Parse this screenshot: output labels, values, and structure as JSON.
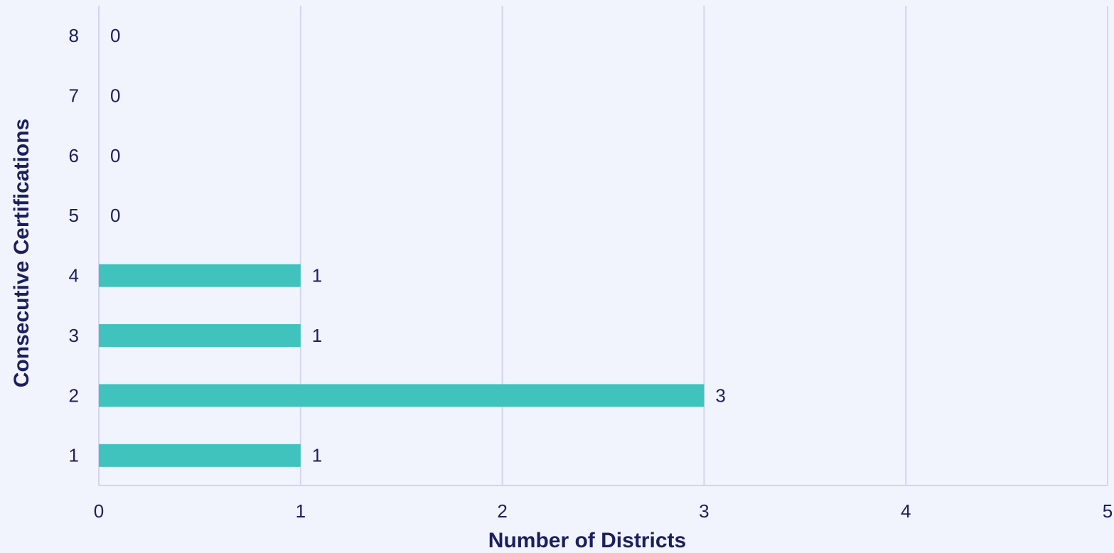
{
  "chart_data": {
    "type": "barh",
    "xlabel": "Number of Districts",
    "ylabel": "Consecutive Certifications",
    "categories": [
      "1",
      "2",
      "3",
      "4",
      "5",
      "6",
      "7",
      "8"
    ],
    "values": [
      1,
      3,
      1,
      1,
      0,
      0,
      0,
      0
    ],
    "color": "#40c2bd",
    "xlim": [
      0,
      5
    ],
    "xticks": [
      0,
      1,
      2,
      3,
      4,
      5
    ],
    "grid": true
  }
}
